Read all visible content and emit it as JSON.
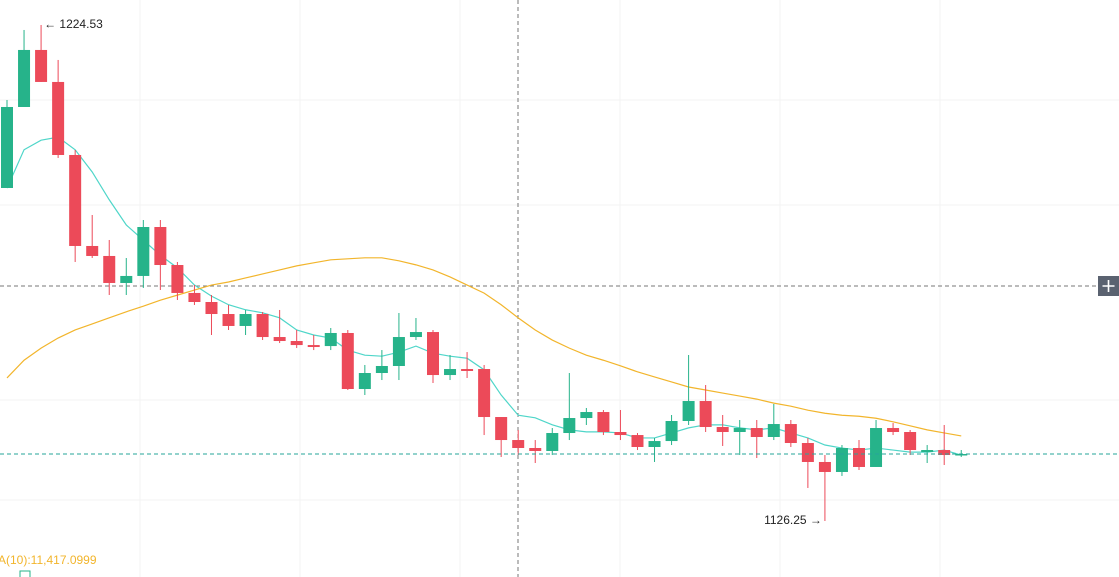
{
  "chart_data": {
    "type": "candlestick",
    "high_label": "← 1224.53",
    "low_label": "1126.25 →",
    "indicator_label": "A(10):11,417.0999",
    "ylim": [
      1115.15,
      1229.48
    ],
    "up_color": "#26b38a",
    "down_color": "#ec4a59",
    "open": [
      1192.23,
      1208.28,
      1219.58,
      1213.24,
      1198.77,
      1180.74,
      1178.76,
      1173.41,
      1174.8,
      1184.5,
      1176.97,
      1171.43,
      1169.64,
      1167.26,
      1164.89,
      1167.26,
      1162.7,
      1161.91,
      1161.11,
      1160.91,
      1163.5,
      1152.4,
      1155.57,
      1156.96,
      1162.7,
      1163.69,
      1155.17,
      1156.36,
      1156.36,
      1146.85,
      1142.29,
      1140.71,
      1140.12,
      1143.68,
      1146.65,
      1147.84,
      1143.88,
      1143.28,
      1140.91,
      1142.09,
      1146.06,
      1150.02,
      1144.87,
      1143.88,
      1144.67,
      1142.89,
      1145.46,
      1141.7,
      1137.94,
      1135.96,
      1140.71,
      1136.95,
      1144.67,
      1143.88,
      1139.92,
      1140.31,
      1139.32
    ],
    "high": [
      1209.67,
      1223.54,
      1224.53,
      1217.6,
      1199.76,
      1186.88,
      1181.93,
      1178.36,
      1185.89,
      1185.89,
      1177.57,
      1173.01,
      1171.03,
      1169.05,
      1168.06,
      1167.66,
      1168.06,
      1164.09,
      1163.1,
      1164.49,
      1164.09,
      1157.16,
      1160.12,
      1167.46,
      1166.47,
      1164.09,
      1159.14,
      1159.72,
      1157.16,
      1146.85,
      1144.28,
      1142.29,
      1144.67,
      1155.57,
      1148.64,
      1148.24,
      1148.24,
      1143.68,
      1142.69,
      1147.25,
      1159.14,
      1153.19,
      1147.25,
      1146.26,
      1146.26,
      1149.43,
      1146.26,
      1142.69,
      1139.32,
      1141.3,
      1142.29,
      1146.26,
      1145.66,
      1144.28,
      1141.3,
      1145.27,
      1140.31
    ],
    "low": [
      1192.23,
      1208.28,
      1213.24,
      1198.18,
      1177.57,
      1178.36,
      1171.03,
      1171.03,
      1172.42,
      1172.02,
      1170.04,
      1169.05,
      1163.1,
      1164.09,
      1163.1,
      1162.11,
      1161.51,
      1160.52,
      1160.12,
      1160.12,
      1152.2,
      1151.21,
      1154.18,
      1154.18,
      1162.11,
      1153.59,
      1154.18,
      1154.58,
      1143.28,
      1138.93,
      1139.32,
      1137.74,
      1139.32,
      1142.29,
      1145.27,
      1143.28,
      1142.29,
      1140.31,
      1137.94,
      1141.3,
      1145.27,
      1143.88,
      1141.11,
      1139.32,
      1138.73,
      1142.29,
      1140.91,
      1132.79,
      1126.25,
      1135.17,
      1136.35,
      1136.95,
      1143.28,
      1139.32,
      1137.74,
      1137.34,
      1138.93
    ],
    "close": [
      1208.28,
      1219.58,
      1213.24,
      1198.77,
      1180.74,
      1178.76,
      1173.41,
      1174.8,
      1184.5,
      1176.97,
      1171.43,
      1169.64,
      1167.26,
      1164.89,
      1167.26,
      1162.7,
      1161.91,
      1161.11,
      1160.72,
      1163.5,
      1152.4,
      1155.57,
      1156.96,
      1162.7,
      1163.69,
      1155.17,
      1156.36,
      1155.97,
      1146.85,
      1142.29,
      1140.71,
      1140.12,
      1143.68,
      1146.65,
      1147.84,
      1143.88,
      1143.28,
      1140.91,
      1142.09,
      1146.06,
      1150.02,
      1144.87,
      1143.88,
      1144.67,
      1142.89,
      1145.46,
      1141.7,
      1137.94,
      1135.96,
      1140.71,
      1136.95,
      1144.67,
      1143.88,
      1140.31,
      1140.31,
      1139.32,
      1139.52
    ],
    "lines": [
      {
        "color": "#4fd6c9",
        "values": [
          1192.2,
          1199.8,
          1201.7,
          1202.3,
          1199.8,
          1195.4,
          1189.9,
          1184.9,
          1181.9,
          1178.9,
          1176.4,
          1173.0,
          1170.8,
          1169.1,
          1168.1,
          1167.5,
          1166.5,
          1164.1,
          1163.1,
          1162.5,
          1160.1,
          1159.1,
          1158.9,
          1159.7,
          1160.9,
          1159.5,
          1158.9,
          1158.5,
          1156.2,
          1151.2,
          1147.2,
          1146.7,
          1145.3,
          1144.3,
          1143.9,
          1143.9,
          1143.7,
          1142.7,
          1142.7,
          1143.7,
          1144.7,
          1145.3,
          1145.3,
          1144.7,
          1144.3,
          1144.7,
          1143.7,
          1142.7,
          1141.3,
          1140.7,
          1140.3,
          1140.7,
          1140.3,
          1139.9,
          1139.9,
          1140.3,
          1139.3
        ]
      },
      {
        "color": "#f2b52c",
        "values": [
          1154.6,
          1158.1,
          1160.5,
          1162.5,
          1164.1,
          1165.3,
          1166.5,
          1167.7,
          1168.8,
          1170.0,
          1171.0,
          1172.0,
          1173.0,
          1173.6,
          1174.4,
          1175.2,
          1176.0,
          1176.8,
          1177.4,
          1178.0,
          1178.2,
          1178.4,
          1178.4,
          1177.8,
          1177.0,
          1176.0,
          1174.6,
          1173.0,
          1171.4,
          1169.1,
          1166.5,
          1164.1,
          1162.1,
          1160.5,
          1159.1,
          1158.1,
          1157.0,
          1155.8,
          1154.8,
          1153.8,
          1152.8,
          1152.2,
          1151.6,
          1151.0,
          1150.4,
          1149.6,
          1149.0,
          1148.2,
          1147.6,
          1147.2,
          1147.0,
          1146.6,
          1145.9,
          1145.1,
          1144.3,
          1143.7,
          1143.1
        ]
      }
    ]
  }
}
